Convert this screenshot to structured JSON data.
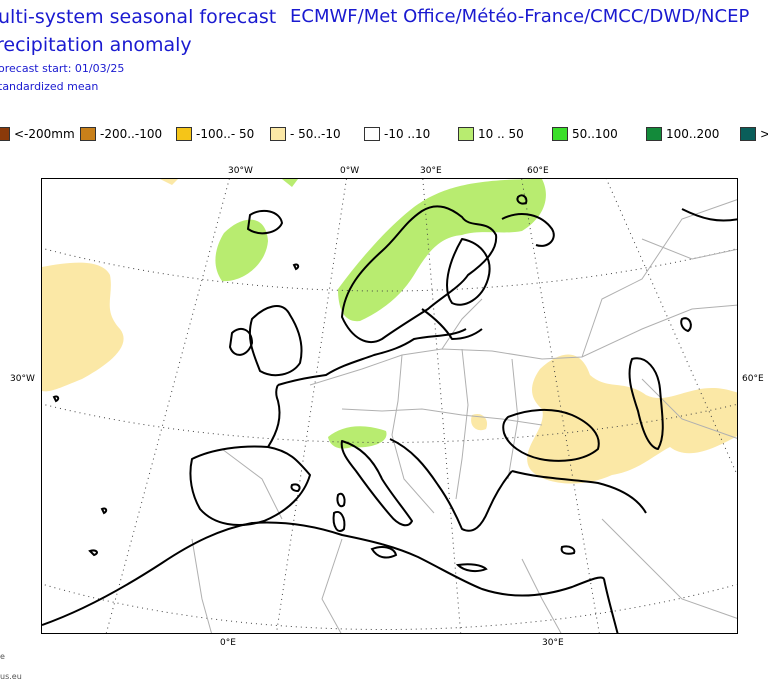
{
  "header": {
    "title_line1": "ulti-system seasonal forecast",
    "title_line2": "recipitation anomaly",
    "forecast_start": "orecast start: 01/03/25",
    "statistic": "tandardized mean",
    "centres": "ECMWF/Met Office/Météo-France/CMCC/DWD/NCEP"
  },
  "legend": {
    "items": [
      {
        "label": "<-200mm",
        "color": "#8b3a0a"
      },
      {
        "label": "-200..-100",
        "color": "#c8801a"
      },
      {
        "label": "-100..- 50",
        "color": "#f5c518"
      },
      {
        "label": "- 50..-10",
        "color": "#fbe8a6"
      },
      {
        "label": "-10 ..10",
        "color": "#ffffff"
      },
      {
        "label": "10 .. 50",
        "color": "#b8ec70"
      },
      {
        "label": "50..100",
        "color": "#3ade2a"
      },
      {
        "label": "100..200",
        "color": "#138a3a"
      },
      {
        "label": ">",
        "color": "#0a5e5a"
      }
    ]
  },
  "map": {
    "top_labels": [
      "30°W",
      "0°W",
      "30°E",
      "60°E"
    ],
    "bottom_labels": [
      "0°E",
      "30°E"
    ],
    "left_label": "30°W",
    "right_label": "60°E",
    "colors": {
      "dry_light": "#fbe8a6",
      "wet_light": "#b8ec70",
      "coast": "#000000",
      "border": "#b0b0b0"
    }
  },
  "footer": {
    "line1": "e",
    "line2": "us.eu"
  }
}
